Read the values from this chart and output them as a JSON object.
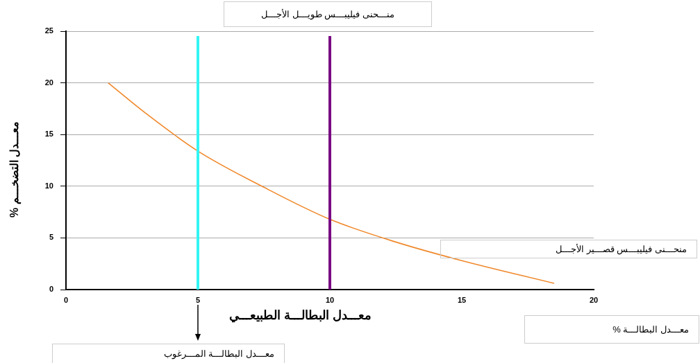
{
  "chart_data": {
    "type": "line",
    "title": "منـــحنى فيليبـــس طويـــل الأجـــل",
    "xlabel": "معـــدل البطالـــة الطبيعـــي",
    "ylabel": "معـــدل التضخـــم %",
    "x": [
      1.6,
      3,
      5,
      7.5,
      10,
      12.5,
      15,
      18.5
    ],
    "series": [
      {
        "color": "#f0882a",
        "values": [
          20,
          17.1,
          13.4,
          9.9,
          6.8,
          4.6,
          2.8,
          0.6
        ]
      }
    ],
    "xlim": [
      0,
      20
    ],
    "ylim": [
      0,
      25
    ],
    "xticks": [
      0,
      5,
      10,
      15,
      20
    ],
    "yticks": [
      0,
      5,
      10,
      15,
      20,
      25
    ],
    "grid": "y",
    "ref_lines": [
      {
        "axis": "x",
        "value": 5,
        "color": "#33f5f5"
      },
      {
        "axis": "x",
        "value": 10,
        "color": "#7a0a82"
      }
    ],
    "annotations": [
      "منحـــنى فيليبـــس قصـــير الأجـــل",
      "معـــدل البطالـــة %",
      "معـــدل البطالـــة المـــرغوب"
    ]
  }
}
